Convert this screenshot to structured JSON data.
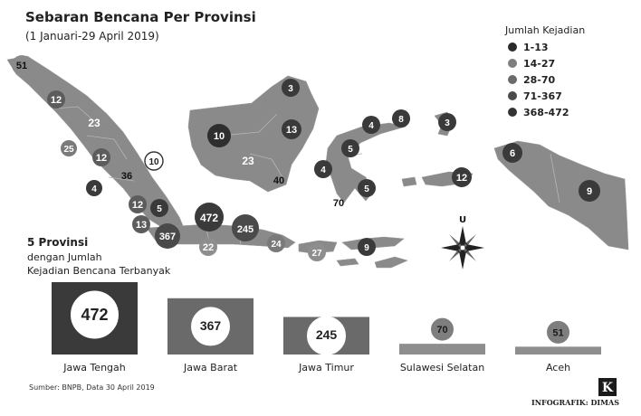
{
  "header": {
    "title": "Sebaran Bencana Per Provinsi",
    "subtitle": "(1 Januari-29 April 2019)"
  },
  "legend": {
    "title": "Jumlah Kejadian",
    "items": [
      {
        "label": "1-13",
        "color": "#2a2a2a"
      },
      {
        "label": "14-27",
        "color": "#7e7e7e"
      },
      {
        "label": "28-70",
        "color": "#6a6a6a"
      },
      {
        "label": "71-367",
        "color": "#4a4a4a"
      },
      {
        "label": "368-472",
        "color": "#333333"
      }
    ]
  },
  "map": {
    "markers": [
      "51",
      "12",
      "23",
      "25",
      "12",
      "36",
      "10",
      "4",
      "12",
      "5",
      "13",
      "367",
      "472",
      "22",
      "245",
      "24",
      "27",
      "9",
      "10",
      "23",
      "40",
      "3",
      "13",
      "4",
      "5",
      "4",
      "70",
      "5",
      "8",
      "3",
      "12",
      "6",
      "9"
    ],
    "compass_label": "U"
  },
  "bar_section": {
    "title": "5 Provinsi",
    "subtitle_line1": "dengan Jumlah",
    "subtitle_line2": "Kejadian Bencana Terbanyak"
  },
  "chart_data": {
    "type": "bar",
    "categories": [
      "Jawa Tengah",
      "Jawa Barat",
      "Jawa Timur",
      "Sulawesi Selatan",
      "Aceh"
    ],
    "values": [
      472,
      367,
      245,
      70,
      51
    ],
    "colors": [
      "#3a3a3a",
      "#6a6a6a",
      "#6a6a6a",
      "#8e8e8e",
      "#8e8e8e"
    ]
  },
  "footer": {
    "source": "Sumber: BNPB, Data 30 April 2019",
    "credit": "INFOGRAFIK: DIMAS",
    "logo_letter": "K"
  }
}
